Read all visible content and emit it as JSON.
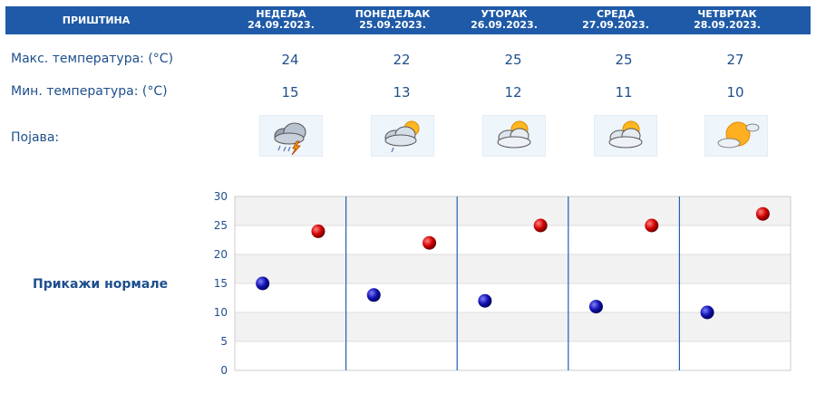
{
  "header": {
    "city": "ПРИШТИНА",
    "days": [
      {
        "day": "НЕДЕЉА",
        "date": "24.09.2023."
      },
      {
        "day": "ПОНЕДЕЉАК",
        "date": "25.09.2023."
      },
      {
        "day": "УТОРАК",
        "date": "26.09.2023."
      },
      {
        "day": "СРЕДА",
        "date": "27.09.2023."
      },
      {
        "day": "ЧЕТВРТАК",
        "date": "28.09.2023."
      }
    ]
  },
  "rows": {
    "max_label": "Макс. температура: (°C)",
    "min_label": "Мин. температура: (°C)",
    "phenomenon_label": "Појава:",
    "max": [
      "24",
      "22",
      "25",
      "25",
      "27"
    ],
    "min": [
      "15",
      "13",
      "12",
      "11",
      "10"
    ]
  },
  "icons": [
    "thunderstorm-rain-icon",
    "partly-cloudy-rain-icon",
    "partly-cloudy-icon",
    "partly-cloudy-icon",
    "mostly-sunny-icon"
  ],
  "normals_link": "Прикажи нормале",
  "colors": {
    "header_bg": "#1e5aa8",
    "text": "#1e4f8c",
    "min_marker": "#1010a0",
    "max_marker": "#c00000"
  },
  "chart_data": {
    "type": "scatter",
    "categories": [
      "НЕДЕЉА",
      "ПОНЕДЕЉАК",
      "УТОРАК",
      "СРЕДА",
      "ЧЕТВРТАК"
    ],
    "series": [
      {
        "values": [
          15,
          13,
          12,
          11,
          10
        ],
        "color": "#1010a0"
      },
      {
        "values": [
          24,
          22,
          25,
          25,
          27
        ],
        "color": "#c00000"
      }
    ],
    "yticks": [
      0,
      5,
      10,
      15,
      20,
      25,
      30
    ],
    "ylim": [
      0,
      30
    ],
    "grid": true
  }
}
